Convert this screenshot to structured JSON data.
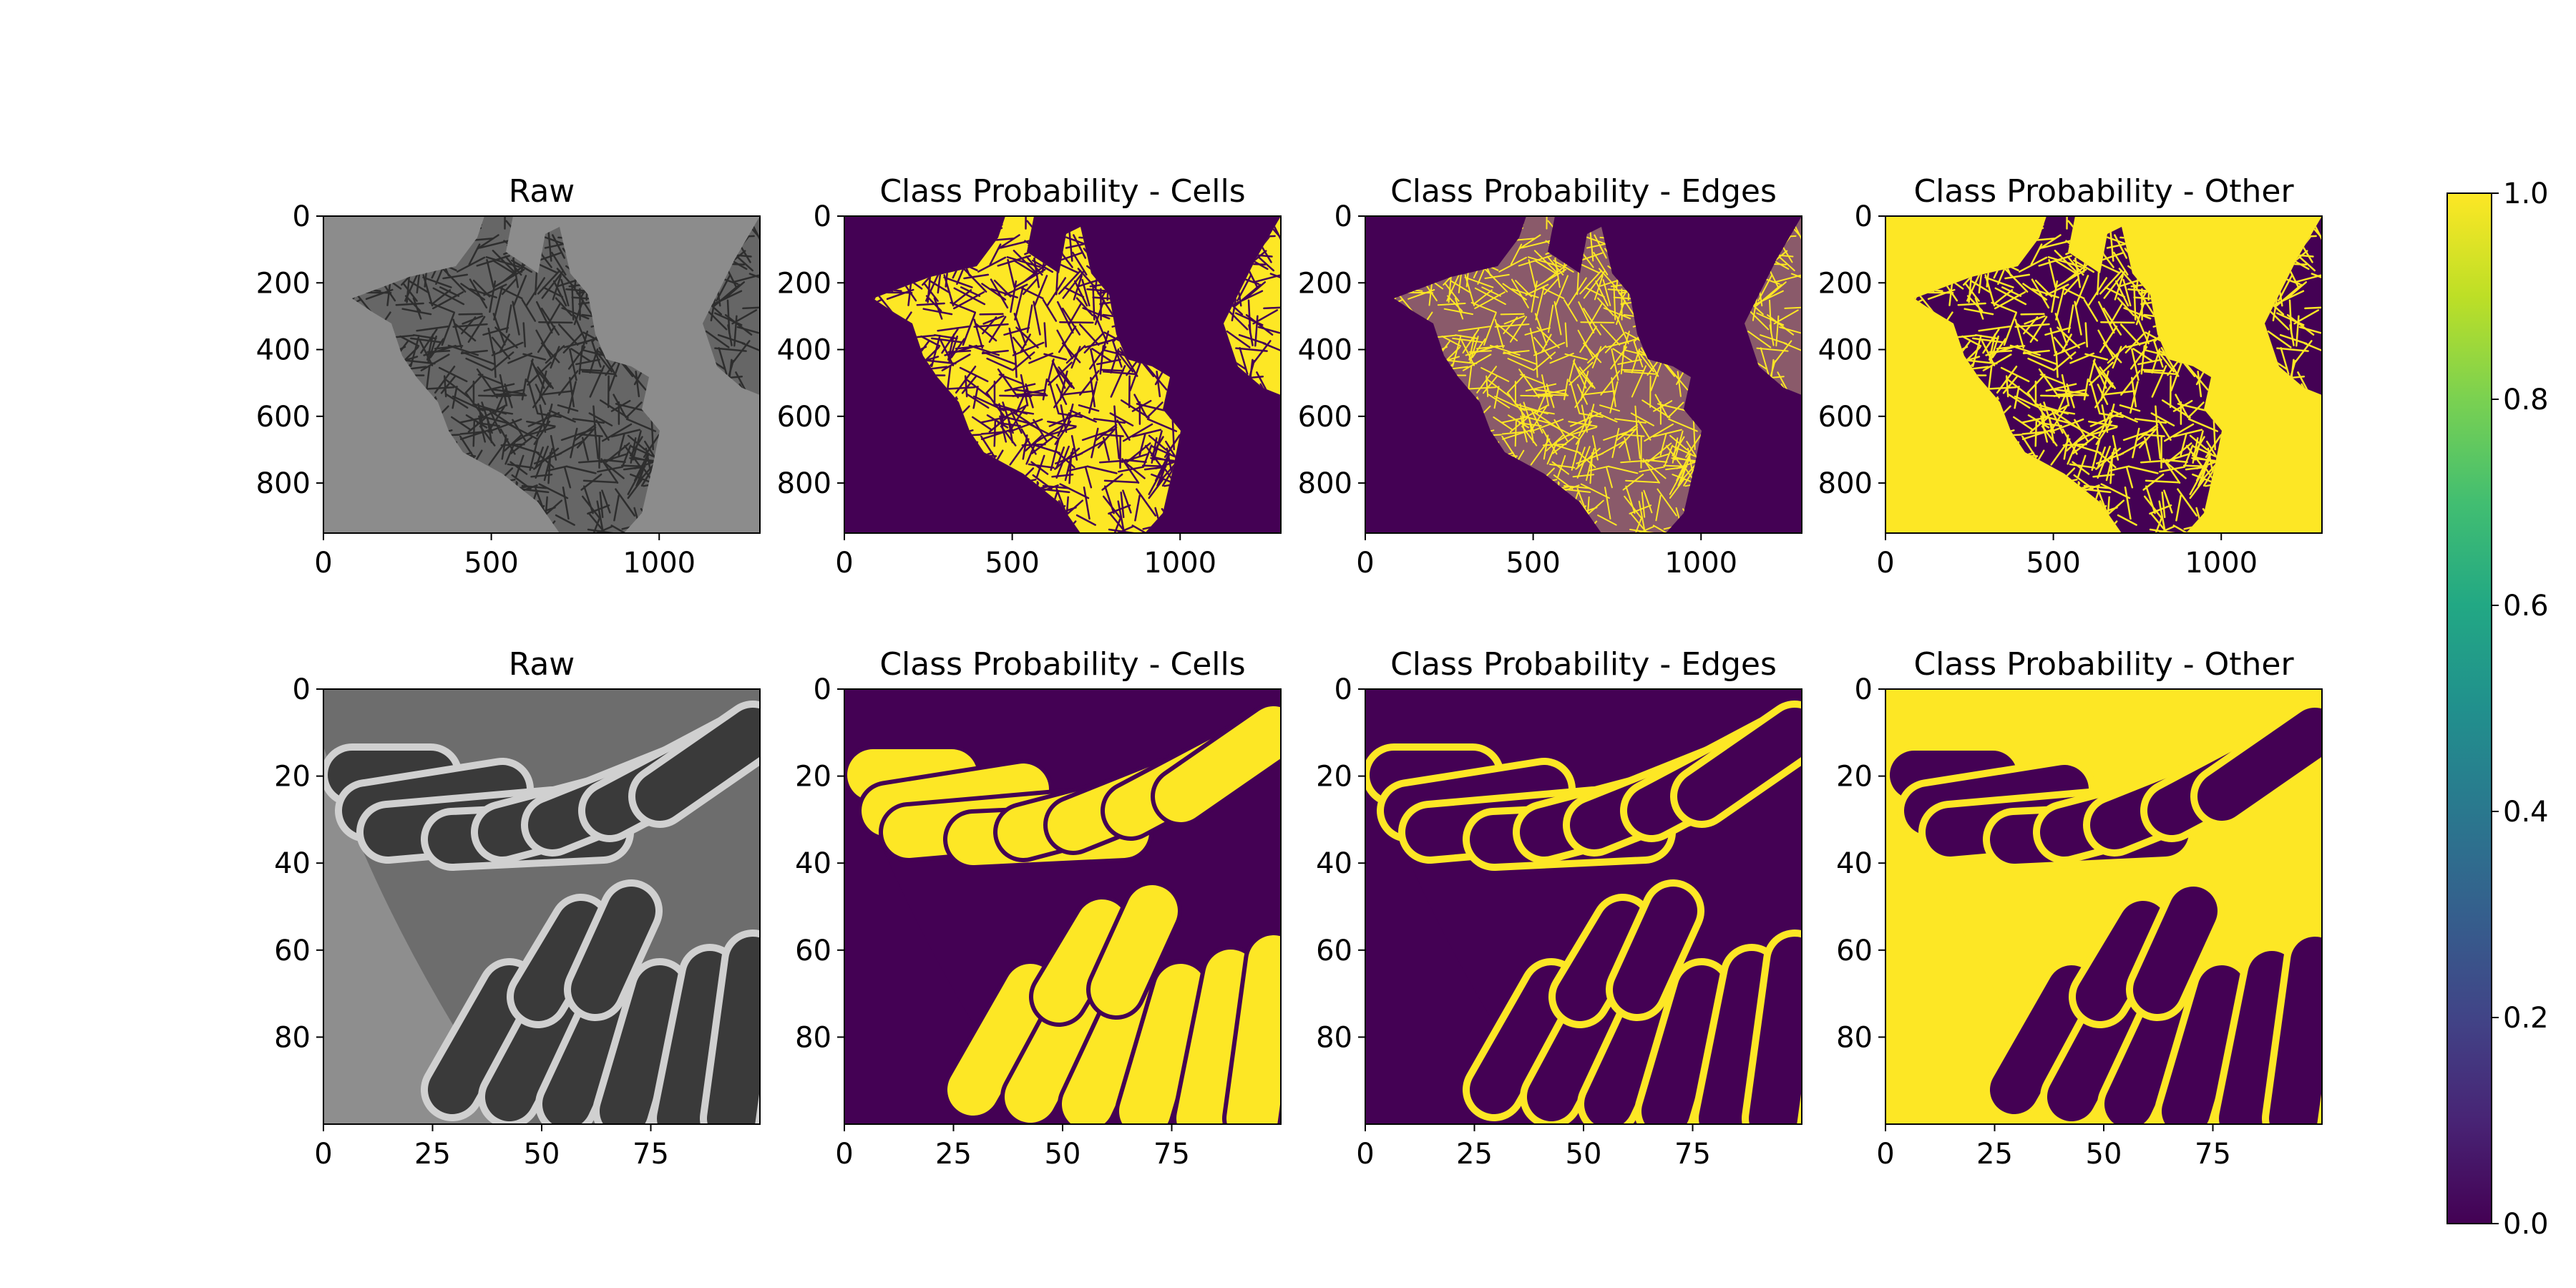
{
  "chart_data": [
    {
      "type": "heatmap",
      "title": "Raw",
      "xlim": [
        0,
        1300
      ],
      "ylim": [
        950,
        0
      ],
      "xticks": [
        0,
        500,
        1000
      ],
      "yticks": [
        0,
        200,
        400,
        600,
        800
      ],
      "render": "gray-large",
      "colormap": "gray"
    },
    {
      "type": "heatmap",
      "title": "Class Probability - Cells",
      "xlim": [
        0,
        1300
      ],
      "ylim": [
        950,
        0
      ],
      "xticks": [
        0,
        500,
        1000
      ],
      "yticks": [
        0,
        200,
        400,
        600,
        800
      ],
      "render": "cells-large",
      "colormap": "viridis"
    },
    {
      "type": "heatmap",
      "title": "Class Probability - Edges",
      "xlim": [
        0,
        1300
      ],
      "ylim": [
        950,
        0
      ],
      "xticks": [
        0,
        500,
        1000
      ],
      "yticks": [
        0,
        200,
        400,
        600,
        800
      ],
      "render": "edges-large",
      "colormap": "viridis"
    },
    {
      "type": "heatmap",
      "title": "Class Probability - Other",
      "xlim": [
        0,
        1300
      ],
      "ylim": [
        950,
        0
      ],
      "xticks": [
        0,
        500,
        1000
      ],
      "yticks": [
        0,
        200,
        400,
        600,
        800
      ],
      "render": "other-large",
      "colormap": "viridis"
    },
    {
      "type": "heatmap",
      "title": "Raw",
      "xlim": [
        0,
        100
      ],
      "ylim": [
        100,
        0
      ],
      "xticks": [
        0,
        25,
        50,
        75
      ],
      "yticks": [
        0,
        20,
        40,
        60,
        80
      ],
      "render": "gray-zoom",
      "colormap": "gray"
    },
    {
      "type": "heatmap",
      "title": "Class Probability - Cells",
      "xlim": [
        0,
        100
      ],
      "ylim": [
        100,
        0
      ],
      "xticks": [
        0,
        25,
        50,
        75
      ],
      "yticks": [
        0,
        20,
        40,
        60,
        80
      ],
      "render": "cells-zoom",
      "colormap": "viridis"
    },
    {
      "type": "heatmap",
      "title": "Class Probability - Edges",
      "xlim": [
        0,
        100
      ],
      "ylim": [
        100,
        0
      ],
      "xticks": [
        0,
        25,
        50,
        75
      ],
      "yticks": [
        0,
        20,
        40,
        60,
        80
      ],
      "render": "edges-zoom",
      "colormap": "viridis"
    },
    {
      "type": "heatmap",
      "title": "Class Probability - Other",
      "xlim": [
        0,
        100
      ],
      "ylim": [
        100,
        0
      ],
      "xticks": [
        0,
        25,
        50,
        75
      ],
      "yticks": [
        0,
        20,
        40,
        60,
        80
      ],
      "render": "other-zoom",
      "colormap": "viridis"
    }
  ],
  "colorbar": {
    "range": [
      0.0,
      1.0
    ],
    "ticks": [
      "0.0",
      "0.2",
      "0.4",
      "0.6",
      "0.8",
      "1.0"
    ],
    "colormap": "viridis"
  },
  "colors": {
    "viridis_low": "#440154",
    "viridis_mid": "#21908d",
    "viridis_high": "#fde725",
    "gray_background": "#8c8c8c",
    "gray_dark": "#3a3a3a",
    "gray_light": "#d0d0d0"
  }
}
